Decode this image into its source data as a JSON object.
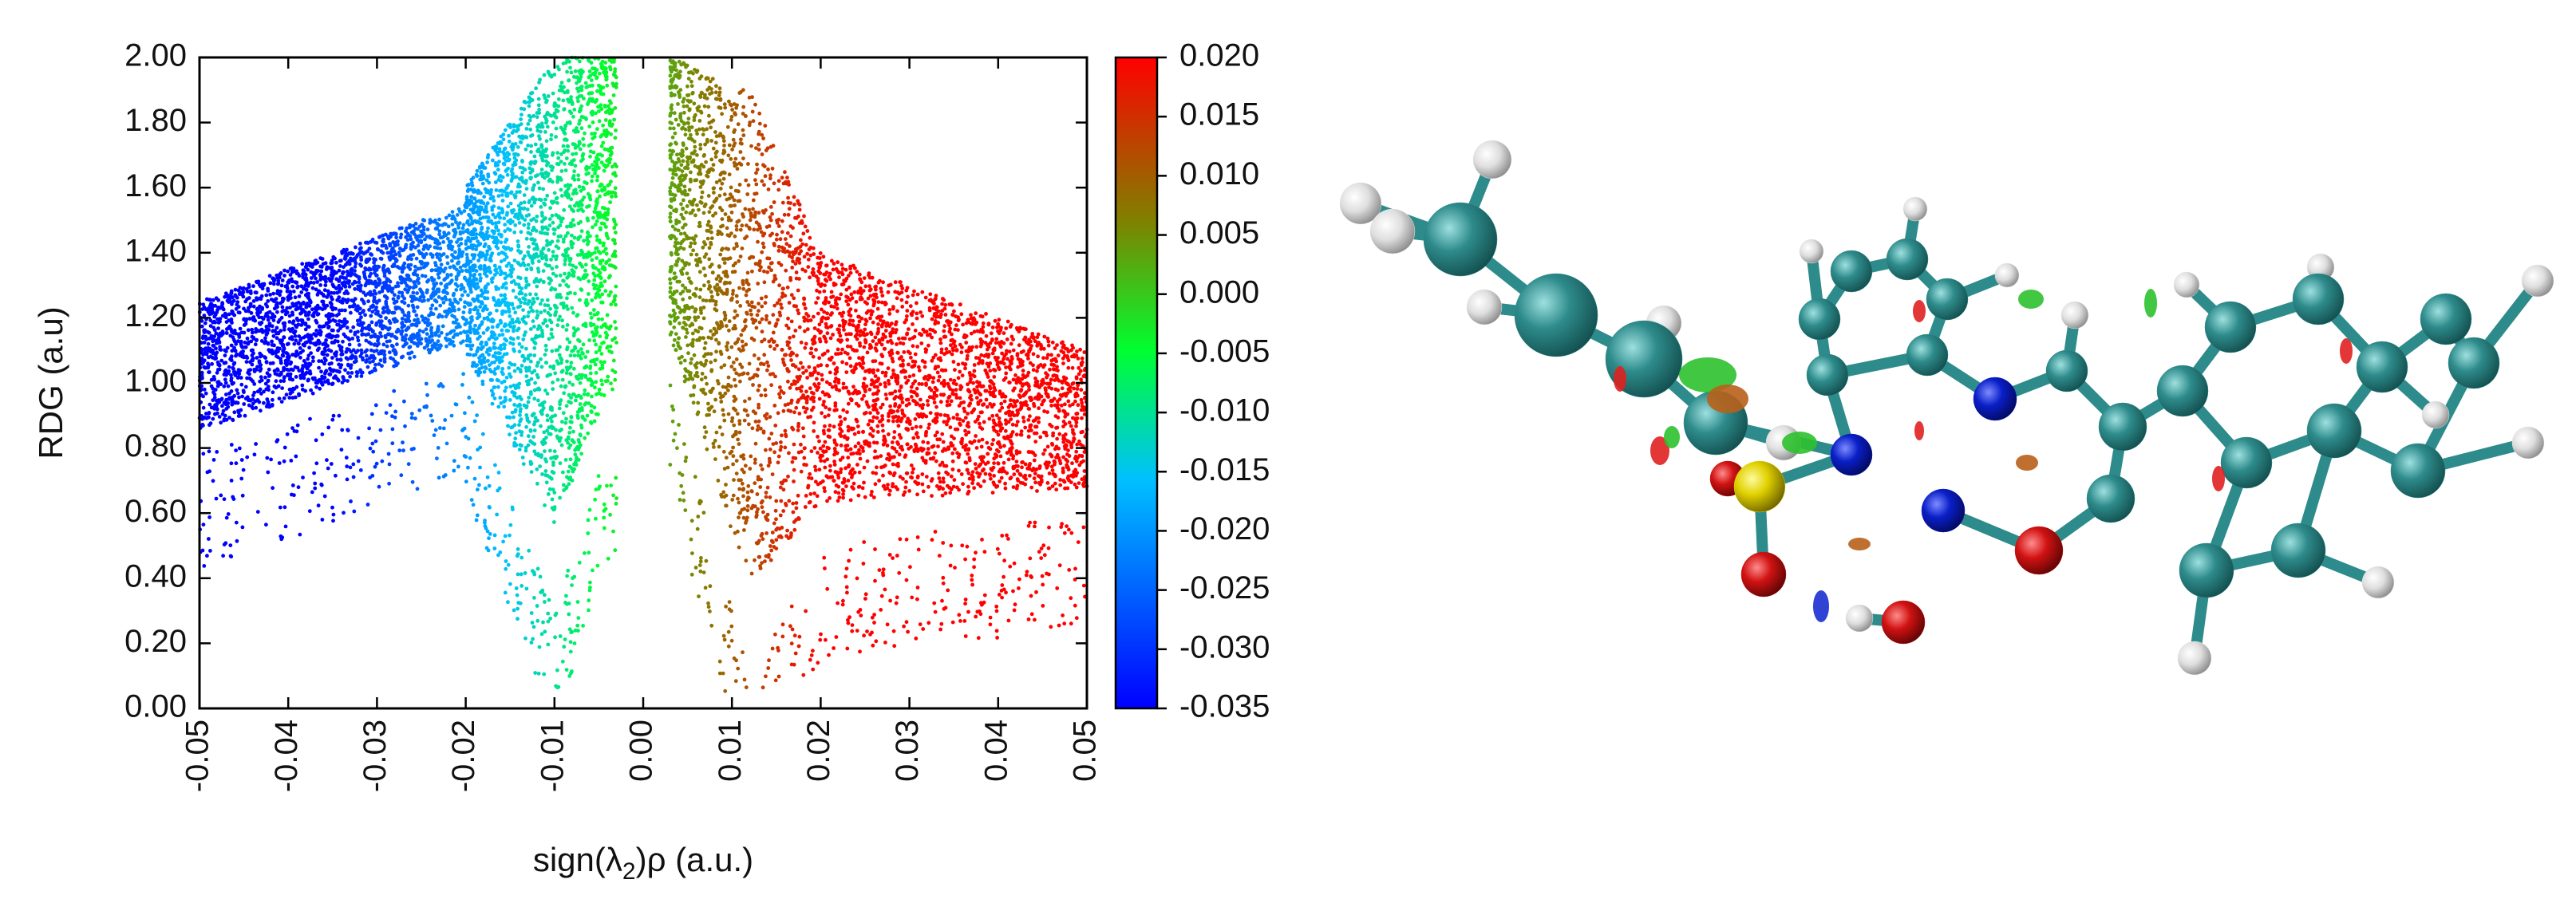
{
  "chart_data": {
    "type": "scatter",
    "title": "",
    "xlabel": "sign(λ2)ρ (a.u.)",
    "xlabel_parts": {
      "pre": "sign(λ",
      "sub": "2",
      "post": ")ρ (a.u.)"
    },
    "ylabel": "RDG (a.u)",
    "xlim": [
      -0.05,
      0.05
    ],
    "ylim": [
      0.0,
      2.0
    ],
    "x_ticks": [
      "-0.05",
      "-0.04",
      "-0.03",
      "-0.02",
      "-0.01",
      "0.00",
      "0.01",
      "0.02",
      "0.03",
      "0.04",
      "0.05"
    ],
    "y_ticks": [
      "0.00",
      "0.20",
      "0.40",
      "0.60",
      "0.80",
      "1.00",
      "1.20",
      "1.40",
      "1.60",
      "1.80",
      "2.00"
    ],
    "colorbar": {
      "range": [
        -0.035,
        0.02
      ],
      "ticks": [
        "0.020",
        "0.015",
        "0.010",
        "0.005",
        "0.000",
        "-0.005",
        "-0.010",
        "-0.015",
        "-0.020",
        "-0.025",
        "-0.030",
        "-0.035"
      ],
      "colors": {
        "low": "#0000ff",
        "mid": "#00ff00",
        "high": "#ff0000"
      }
    },
    "series": [
      {
        "x_range": [
          -0.05,
          -0.02
        ],
        "rdg_band": [
          [
            -0.05,
            0.78,
            1.25
          ],
          [
            -0.02,
            1.05,
            1.55
          ]
        ],
        "color_scale": "blue-to-green"
      },
      {
        "x_range": [
          -0.02,
          -0.003
        ],
        "rdg_band": [
          [
            -0.02,
            1.0,
            1.6
          ],
          [
            -0.01,
            0.3,
            2.0
          ],
          [
            -0.004,
            0.8,
            2.0
          ]
        ],
        "color_scale": "green"
      },
      {
        "x_range": [
          0.003,
          0.05
        ],
        "rdg_band": [
          [
            0.003,
            1.0,
            2.0
          ],
          [
            0.012,
            0.1,
            1.9
          ],
          [
            0.02,
            0.5,
            1.4
          ],
          [
            0.05,
            0.6,
            1.1
          ]
        ],
        "color_scale": "green-to-red"
      }
    ]
  },
  "molecule_render": {
    "atom_colors": {
      "carbon": "#2e8b8b",
      "hydrogen": "#e6e6e6",
      "nitrogen": "#0a1fc8",
      "oxygen": "#d11212",
      "sulfur": "#e0d000"
    },
    "isosurface_colors": {
      "green": "#2ec12e",
      "red": "#e02020",
      "brown": "#b8601a",
      "blue": "#1a2fd0"
    }
  }
}
